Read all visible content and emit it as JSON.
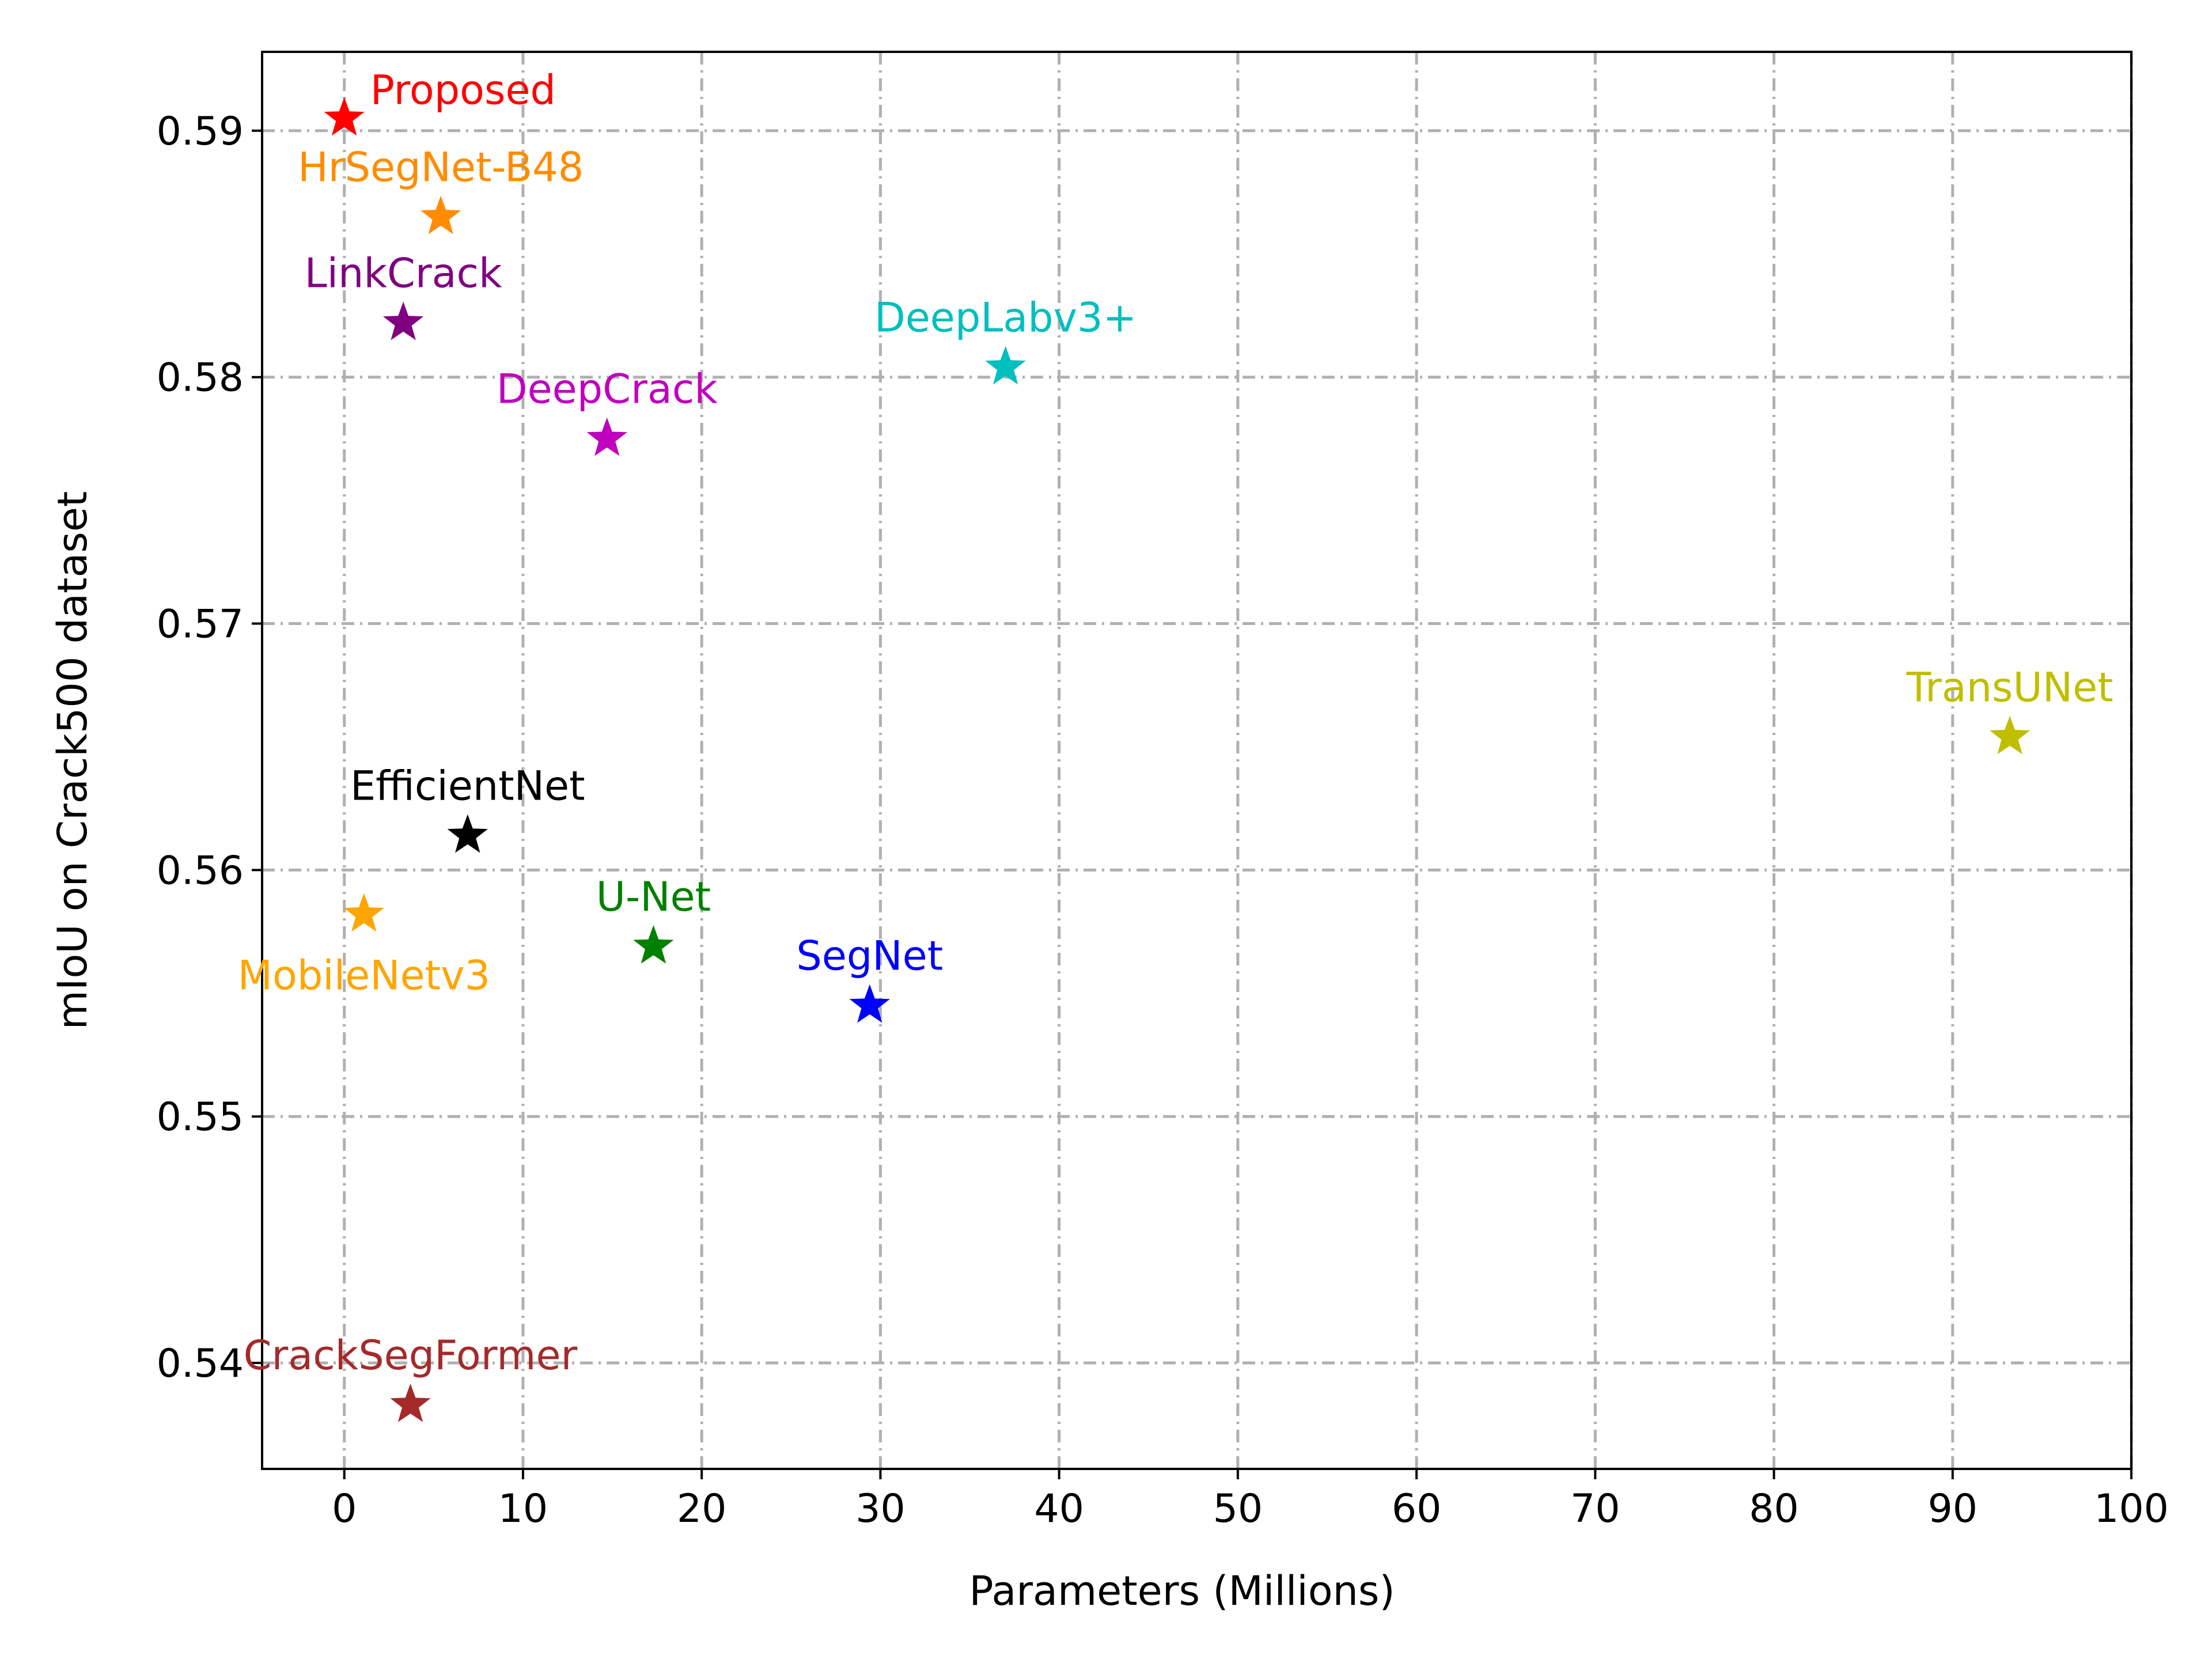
{
  "chart_data": {
    "type": "scatter",
    "title": "",
    "xlabel": "Parameters (Millions)",
    "ylabel": "mIoU on Crack500 dataset",
    "xlim": [
      -4.6,
      100
    ],
    "ylim": [
      0.5357,
      0.5932
    ],
    "xticks": [
      0,
      10,
      20,
      30,
      40,
      50,
      60,
      70,
      80,
      90,
      100
    ],
    "xtick_labels": [
      "0",
      "10",
      "20",
      "30",
      "40",
      "50",
      "60",
      "70",
      "80",
      "90",
      "100"
    ],
    "yticks": [
      0.54,
      0.55,
      0.56,
      0.57,
      0.58,
      0.59
    ],
    "ytick_labels": [
      "0.54",
      "0.55",
      "0.56",
      "0.57",
      "0.58",
      "0.59"
    ],
    "grid": true,
    "marker": "star",
    "points": [
      {
        "label": "Proposed",
        "x": 0.0,
        "y": 0.5905,
        "color": "#ff0000",
        "label_pos": "upper-right"
      },
      {
        "label": "HrSegNet-B48",
        "x": 5.4,
        "y": 0.5865,
        "color": "#ff8c00",
        "label_pos": "above"
      },
      {
        "label": "LinkCrack",
        "x": 3.3,
        "y": 0.5822,
        "color": "#800080",
        "label_pos": "above"
      },
      {
        "label": "DeepCrack",
        "x": 14.7,
        "y": 0.5775,
        "color": "#bf00bf",
        "label_pos": "above"
      },
      {
        "label": "DeepLabv3+",
        "x": 37.0,
        "y": 0.5804,
        "color": "#00bfbf",
        "label_pos": "above"
      },
      {
        "label": "TransUNet",
        "x": 93.2,
        "y": 0.5654,
        "color": "#bfbf00",
        "label_pos": "above"
      },
      {
        "label": "EfficientNet",
        "x": 6.9,
        "y": 0.5614,
        "color": "#000000",
        "label_pos": "above"
      },
      {
        "label": "MobileNetv3",
        "x": 1.1,
        "y": 0.5582,
        "color": "#ffa500",
        "label_pos": "below"
      },
      {
        "label": "U-Net",
        "x": 17.3,
        "y": 0.5569,
        "color": "#008000",
        "label_pos": "above"
      },
      {
        "label": "SegNet",
        "x": 29.4,
        "y": 0.5545,
        "color": "#0000ff",
        "label_pos": "above"
      },
      {
        "label": "CrackSegFormer",
        "x": 3.7,
        "y": 0.5383,
        "color": "#a52a2a",
        "label_pos": "above"
      }
    ]
  }
}
